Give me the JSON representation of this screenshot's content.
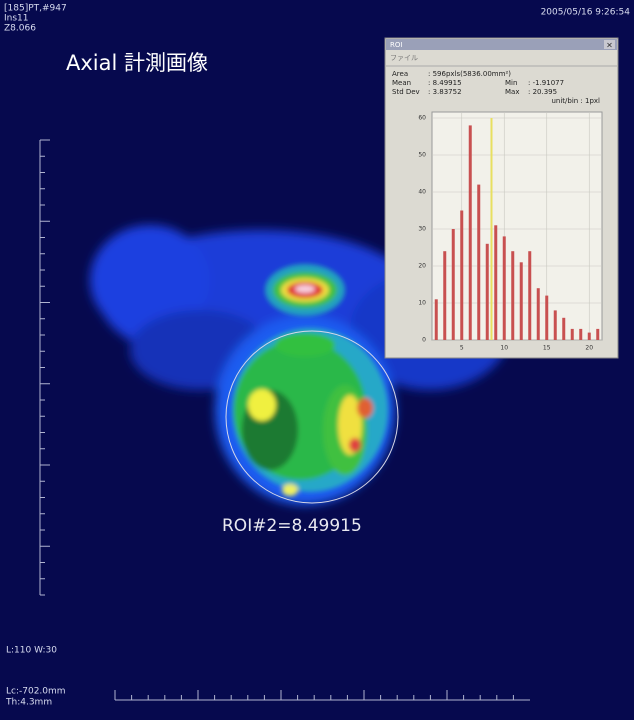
{
  "overlay": {
    "top_left": [
      "[185]PT,#947",
      "Ins11",
      "Z8.066"
    ],
    "top_right": "2005/05/16 9:26:54",
    "title": "Axial 計測画像",
    "roi_label": "ROI#2=8.49915",
    "window_level": "L:110 W:30",
    "bottom_left": [
      "Lc:-702.0mm",
      "Th:4.3mm"
    ]
  },
  "histogram_window": {
    "title": "ROI",
    "menu": "ファイル",
    "stats": [
      {
        "label": "Area",
        "value": ": 596pxls(5836.00mm²)"
      },
      {
        "label": "Mean",
        "value": ": 8.49915"
      },
      {
        "label": "Min",
        "value": ": -1.91077"
      },
      {
        "label": "Std Dev",
        "value": ": 3.83752"
      },
      {
        "label": "Max",
        "value": ": 20.395"
      }
    ],
    "unit": "unit/bin : 1pxl"
  },
  "chart_data": {
    "type": "bar",
    "x": [
      2,
      3,
      4,
      5,
      6,
      7,
      8,
      9,
      10,
      11,
      12,
      13,
      14,
      15,
      16,
      17,
      18,
      19,
      20,
      21
    ],
    "values": [
      11,
      24,
      30,
      35,
      58,
      42,
      26,
      31,
      28,
      24,
      21,
      24,
      14,
      12,
      8,
      6,
      3,
      3,
      2,
      3
    ],
    "color": "#c85050",
    "mean": 8.49915,
    "mean_color": "#e8e060",
    "xlim": [
      1.5,
      21.5
    ],
    "xticks": [
      5,
      10,
      15,
      20
    ],
    "ylim": [
      0,
      60
    ],
    "yticks": [
      0,
      10,
      20,
      30,
      40,
      50,
      60
    ],
    "grid": true
  }
}
